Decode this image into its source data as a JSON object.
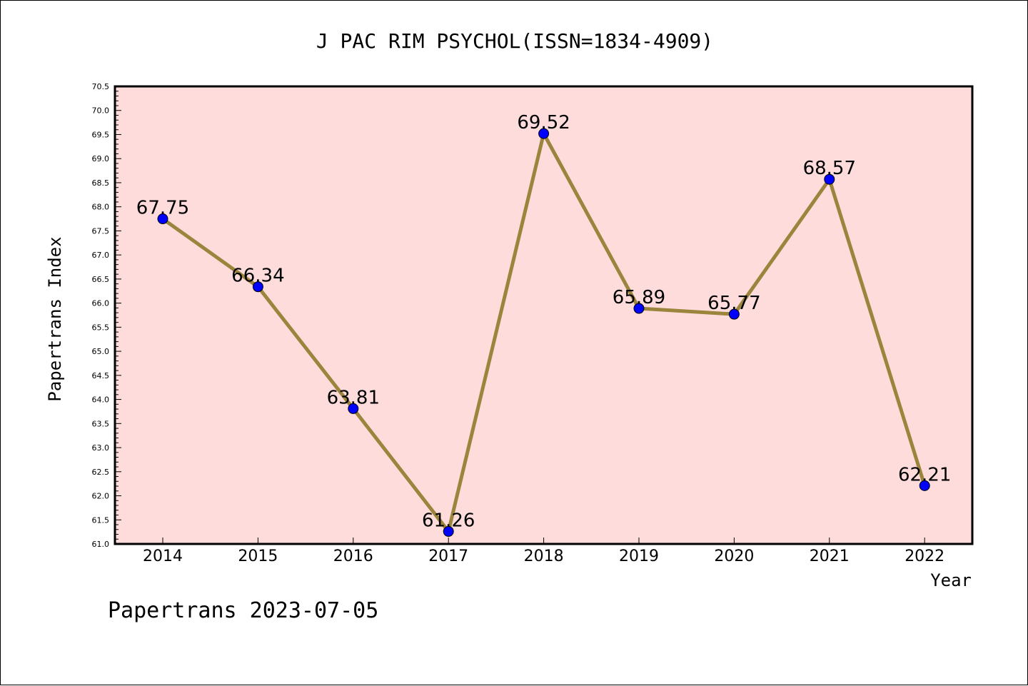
{
  "chart_data": {
    "type": "line",
    "title": "J PAC RIM PSYCHOL(ISSN=1834-4909)",
    "xlabel": "Year",
    "ylabel": "Papertrans Index",
    "footer": "Papertrans 2023-07-05",
    "ylim": [
      61.0,
      70.5
    ],
    "ytick_step": 0.5,
    "grid": false,
    "categories": [
      "2014",
      "2015",
      "2016",
      "2017",
      "2018",
      "2019",
      "2020",
      "2021",
      "2022"
    ],
    "series": [
      {
        "values": [
          67.75,
          66.34,
          63.81,
          61.26,
          69.52,
          65.89,
          65.77,
          68.57,
          62.21
        ],
        "data_labels": [
          "67.75",
          "66.34",
          "63.81",
          "61.26",
          "69.52",
          "65.89",
          "65.77",
          "68.57",
          "62.21"
        ],
        "line_color": "#9b843c",
        "marker_color": "#0000ff"
      }
    ],
    "plot_background": "#ffdcdc"
  }
}
